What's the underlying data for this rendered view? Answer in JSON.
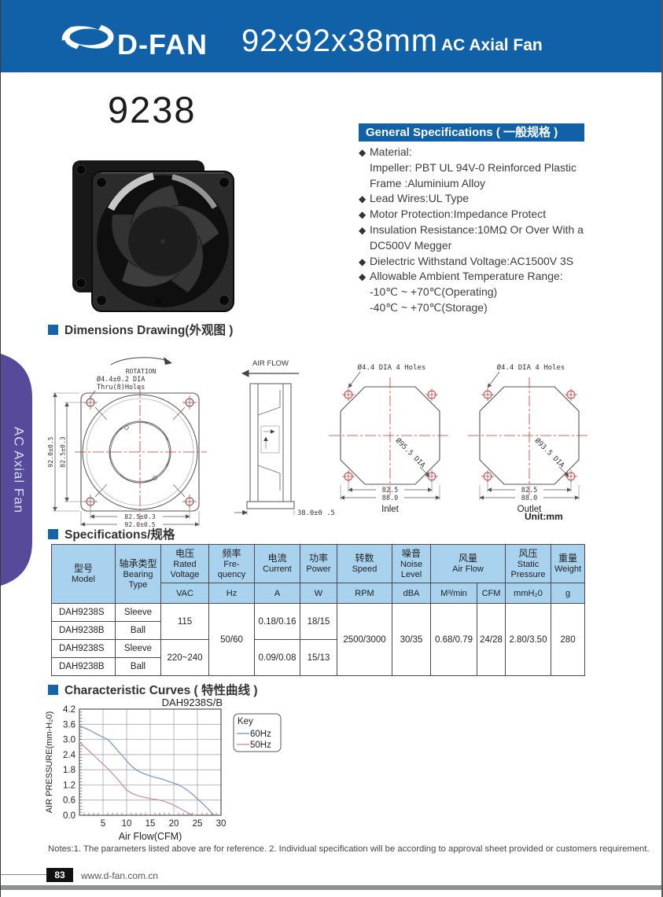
{
  "header": {
    "brand": "D-FAN",
    "title": "92x92x38mm",
    "subtitle": "AC Axial Fan"
  },
  "sidebar": {
    "label": "AC Axial Fan"
  },
  "product": {
    "model": "9238"
  },
  "general": {
    "title": "General Specifications ( 一般规格 )",
    "items": [
      {
        "b": "◆",
        "t": "Material:"
      },
      {
        "b": "",
        "t": "Impeller: PBT UL 94V-0 Reinforced Plastic"
      },
      {
        "b": "",
        "t": "Frame :Aluminium Alloy"
      },
      {
        "b": "◆",
        "t": "Lead Wires:UL Type"
      },
      {
        "b": "◆",
        "t": "Motor Protection:Impedance Protect"
      },
      {
        "b": "◆",
        "t": "Insulation Resistance:10MΩ Or Over With a"
      },
      {
        "b": "",
        "t": "DC500V Megger"
      },
      {
        "b": "◆",
        "t": "Dielectric Withstand Voltage:AC1500V 3S"
      },
      {
        "b": "◆",
        "t": "Allowable Ambient Temperature Range:"
      },
      {
        "b": "",
        "t": "-10℃ ~ +70℃(Operating)"
      },
      {
        "b": "",
        "t": "-40℃ ~ +70℃(Storage)"
      }
    ]
  },
  "dimensions": {
    "title": "Dimensions Drawing(外观图 )",
    "unit": "Unit:mm",
    "front": {
      "rotation": "ROTATION",
      "hole_note1": "Ø4.4±0.2 DIA",
      "hole_note2": "Thru(8)Holes",
      "dim_h_outer": "92.0±0.5",
      "dim_h_inner": "82.5±0.3",
      "dim_w_inner": "82.5±0.3",
      "dim_w_outer": "92.0±0.5"
    },
    "side": {
      "airflow": "AIR FLOW",
      "depth": "38.0±0 .5"
    },
    "inlet": {
      "hole_note": "Ø4.4 DIA 4 Holes",
      "dia": "Ø95.5 DIA",
      "dim_inner": "82.5",
      "dim_outer": "88.0",
      "caption": "Inlet"
    },
    "outlet": {
      "hole_note": "Ø4.4 DIA 4 Holes",
      "dia": "Ø93.5 DIA",
      "dim_inner": "82.5",
      "dim_outer": "88.0",
      "caption": "Outlet"
    }
  },
  "spec_table": {
    "title": "Specifications/规格",
    "head": {
      "model": {
        "zh": "型号",
        "en": "Model"
      },
      "bearing": {
        "zh": "轴承类型",
        "en": "Bearing Type"
      },
      "voltage": {
        "zh": "电压",
        "en": "Rated Voltage"
      },
      "freq": {
        "zh": "频率",
        "en": "Fre-quency"
      },
      "current": {
        "zh": "电流",
        "en": "Current"
      },
      "power": {
        "zh": "功率",
        "en": "Power"
      },
      "speed": {
        "zh": "转数",
        "en": "Speed"
      },
      "noise": {
        "zh": "噪音",
        "en": "Noise Level"
      },
      "airflow": {
        "zh": "风量",
        "en": "Air Flow"
      },
      "static": {
        "zh": "风压",
        "en": "Static Pressure"
      },
      "weight": {
        "zh": "重量",
        "en": "Weight"
      }
    },
    "units": {
      "voltage": "VAC",
      "freq": "Hz",
      "current": "A",
      "power": "W",
      "speed": "RPM",
      "noise": "dBA",
      "m3": "M³/min",
      "cfm": "CFM",
      "static": "mmH₂0",
      "weight": "g"
    },
    "rows": [
      {
        "model": "DAH9238S",
        "bearing": "Sleeve"
      },
      {
        "model": "DAH9238B",
        "bearing": "Ball"
      },
      {
        "model": "DAH9238S",
        "bearing": "Sleeve"
      },
      {
        "model": "DAH9238B",
        "bearing": "Ball"
      }
    ],
    "merged": {
      "voltage_a": "115",
      "voltage_b": "220~240",
      "freq": "50/60",
      "current_a": "0.18/0.16",
      "current_b": "0.09/0.08",
      "power_a": "18/15",
      "power_b": "15/13",
      "speed": "2500/3000",
      "noise": "30/35",
      "m3": "0.68/0.79",
      "cfm": "24/28",
      "static": "2.80/3.50",
      "weight": "280"
    }
  },
  "curves": {
    "title": "Characteristic Curves ( 特性曲线 )"
  },
  "chart_data": {
    "type": "line",
    "title": "DAH9238S/B",
    "xlabel": "Air Flow(CFM)",
    "ylabel": "AIR PRESSURE(mm-H₂0)",
    "xlim": [
      0,
      30
    ],
    "ylim": [
      0,
      4.2
    ],
    "xticks": [
      5,
      10,
      15,
      20,
      25,
      30
    ],
    "yticks": [
      0.0,
      0.6,
      1.2,
      1.8,
      2.4,
      3.0,
      3.6,
      4.2
    ],
    "x_minor": 1,
    "y_minor": 0.12,
    "grid": true,
    "legend_title": "Key",
    "legend_position": "right",
    "series": [
      {
        "name": "60Hz",
        "color": "#7193c4",
        "points": [
          [
            0,
            3.55
          ],
          [
            2,
            3.38
          ],
          [
            4,
            3.18
          ],
          [
            6,
            3.0
          ],
          [
            7,
            2.8
          ],
          [
            8,
            2.58
          ],
          [
            9,
            2.38
          ],
          [
            10,
            2.15
          ],
          [
            11,
            1.95
          ],
          [
            12,
            1.8
          ],
          [
            13,
            1.7
          ],
          [
            14,
            1.62
          ],
          [
            15,
            1.56
          ],
          [
            16,
            1.5
          ],
          [
            17,
            1.46
          ],
          [
            18,
            1.4
          ],
          [
            19,
            1.33
          ],
          [
            20,
            1.27
          ],
          [
            21,
            1.2
          ],
          [
            22,
            1.1
          ],
          [
            23,
            0.97
          ],
          [
            24,
            0.82
          ],
          [
            25,
            0.65
          ],
          [
            26,
            0.48
          ],
          [
            27,
            0.3
          ],
          [
            28,
            0.1
          ],
          [
            28.6,
            0
          ]
        ]
      },
      {
        "name": "50Hz",
        "color": "#c787ad",
        "points": [
          [
            0,
            2.9
          ],
          [
            1,
            2.72
          ],
          [
            2,
            2.55
          ],
          [
            3,
            2.38
          ],
          [
            4,
            2.2
          ],
          [
            5,
            2.02
          ],
          [
            6,
            1.85
          ],
          [
            7,
            1.65
          ],
          [
            8,
            1.45
          ],
          [
            9,
            1.22
          ],
          [
            10,
            1.0
          ],
          [
            11,
            0.88
          ],
          [
            12,
            0.8
          ],
          [
            13,
            0.74
          ],
          [
            14,
            0.7
          ],
          [
            15,
            0.66
          ],
          [
            16,
            0.63
          ],
          [
            17,
            0.6
          ],
          [
            18,
            0.55
          ],
          [
            19,
            0.48
          ],
          [
            20,
            0.4
          ],
          [
            21,
            0.3
          ],
          [
            22,
            0.2
          ],
          [
            23,
            0.1
          ],
          [
            24,
            0.02
          ],
          [
            24.4,
            0
          ]
        ]
      }
    ]
  },
  "notes": "Notes:1. The parameters listed above are for reference.   2. Individual specification will be according to approval sheet provided or customers requirement.",
  "footer": {
    "page": "83",
    "website": "www.d-fan.com.cn"
  },
  "colors": {
    "header_blue": "#1161a8",
    "table_head_blue": "#a8d2ee",
    "sidebar_purple": "#584a9b",
    "line_60hz": "#7193c4",
    "line_50hz": "#c787ad",
    "dim_red": "#cc3333"
  }
}
